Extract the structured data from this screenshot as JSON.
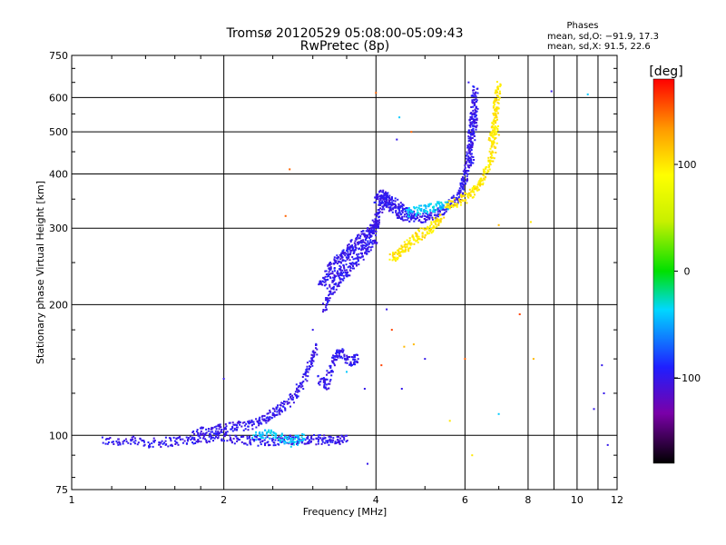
{
  "chart_data": {
    "type": "scatter",
    "title": "Tromsø 20120529 05:08:00-05:09:43",
    "subtitle": "RwPretec (8p)",
    "xlabel": "Frequency [MHz]",
    "ylabel": "Stationary phase Virtual Height [km]",
    "x_scale": "log",
    "y_scale": "log",
    "xlim": [
      1,
      12
    ],
    "ylim": [
      75,
      750
    ],
    "x_ticks": [
      1,
      2,
      4,
      6,
      8,
      10,
      12
    ],
    "x_ticks_all": [
      1,
      2,
      4,
      6,
      8,
      9,
      10,
      11,
      12
    ],
    "x_tick_labels": [
      "1",
      "2",
      "4",
      "6",
      "8",
      "10",
      "12"
    ],
    "y_ticks": [
      75,
      100,
      200,
      300,
      400,
      500,
      600,
      750
    ],
    "y_tick_labels": [
      "75",
      "100",
      "200",
      "300",
      "400",
      "500",
      "600",
      "750"
    ],
    "grid": true,
    "phases_box": {
      "title": "Phases",
      "line_o": "mean, sd,O: −91.9, 17.3",
      "line_x": "mean, sd,X:  91.5, 22.6"
    },
    "colorbar": {
      "label": "[deg]",
      "range": [
        -180,
        180
      ],
      "ticks": [
        100,
        0,
        -100
      ],
      "tick_labels": [
        "100",
        "0",
        "−100"
      ]
    },
    "series": [
      {
        "mode": "O",
        "phase": -100,
        "segments": [
          {
            "x": [
              1.15,
              1.3,
              1.45,
              1.6,
              1.75,
              1.9,
              2.1,
              2.3,
              2.5,
              2.7,
              2.9,
              3.1,
              3.3,
              3.5
            ],
            "y": [
              97,
              97,
              96,
              97,
              98,
              99,
              98,
              97,
              97,
              98,
              97,
              98,
              97,
              98
            ]
          },
          {
            "x": [
              1.75,
              1.9,
              2.0,
              2.15,
              2.3,
              2.45,
              2.55
            ],
            "y": [
              101,
              103,
              104,
              105,
              106,
              110,
              115
            ]
          },
          {
            "x": [
              2.55,
              2.7,
              2.85,
              2.95,
              3.05
            ],
            "y": [
              113,
              120,
              130,
              145,
              160
            ]
          },
          {
            "x": [
              3.1,
              3.2,
              3.3,
              3.4,
              3.55,
              3.7
            ],
            "y": [
              135,
              130,
              150,
              155,
              148,
              150
            ]
          },
          {
            "x": [
              3.1,
              3.2,
              3.3,
              3.45,
              3.6,
              3.8,
              3.95,
              4.05
            ],
            "y": [
              220,
              235,
              250,
              260,
              275,
              290,
              300,
              310
            ]
          },
          {
            "x": [
              3.15,
              3.25,
              3.4,
              3.55,
              3.7,
              3.85,
              4.0
            ],
            "y": [
              195,
              215,
              230,
              240,
              255,
              270,
              285
            ]
          },
          {
            "x": [
              3.25,
              3.4,
              3.6,
              3.8,
              3.95,
              4.05
            ],
            "y": [
              225,
              245,
              265,
              280,
              300,
              320
            ]
          },
          {
            "x": [
              4.05,
              4.15,
              4.3,
              4.5,
              4.8,
              5.1,
              5.4,
              5.7,
              5.9
            ],
            "y": [
              330,
              345,
              335,
              320,
              315,
              318,
              328,
              345,
              360
            ]
          },
          {
            "x": [
              4.0,
              4.1,
              4.2,
              4.35,
              4.55,
              4.8
            ],
            "y": [
              350,
              360,
              355,
              342,
              330,
              320
            ]
          },
          {
            "x": [
              5.9,
              6.0,
              6.1,
              6.15,
              6.2,
              6.25,
              6.3
            ],
            "y": [
              370,
              390,
              430,
              480,
              530,
              580,
              630
            ]
          },
          {
            "x": [
              6.15,
              6.2,
              6.25,
              6.3
            ],
            "y": [
              420,
              470,
              520,
              560
            ]
          }
        ]
      },
      {
        "mode": "X",
        "phase": 100,
        "segments": [
          {
            "x": [
              4.3,
              4.45,
              4.6,
              4.8,
              5.0,
              5.2,
              5.4
            ],
            "y": [
              255,
              262,
              272,
              285,
              295,
              305,
              318
            ]
          },
          {
            "x": [
              5.5,
              5.8,
              6.1,
              6.3,
              6.5,
              6.7,
              6.85,
              6.95
            ],
            "y": [
              335,
              345,
              355,
              370,
              390,
              420,
              460,
              520
            ]
          },
          {
            "x": [
              6.75,
              6.85,
              6.9,
              6.95,
              7.0
            ],
            "y": [
              480,
              520,
              560,
              600,
              640
            ]
          }
        ]
      },
      {
        "mode": "O-cyan",
        "phase": -40,
        "segments": [
          {
            "x": [
              2.3,
              2.5,
              2.7,
              2.9
            ],
            "y": [
              100,
              101,
              96,
              99
            ]
          },
          {
            "x": [
              4.6,
              4.9,
              5.2,
              5.5
            ],
            "y": [
              325,
              330,
              335,
              340
            ]
          }
        ]
      }
    ],
    "scatter_extra": [
      {
        "x": 2.7,
        "y": 410,
        "phase": 150
      },
      {
        "x": 2.65,
        "y": 320,
        "phase": 150
      },
      {
        "x": 4.0,
        "y": 615,
        "phase": 150
      },
      {
        "x": 4.45,
        "y": 540,
        "phase": -40
      },
      {
        "x": 4.4,
        "y": 480,
        "phase": -100
      },
      {
        "x": 4.7,
        "y": 500,
        "phase": 150
      },
      {
        "x": 8.9,
        "y": 620,
        "phase": -100
      },
      {
        "x": 10.5,
        "y": 610,
        "phase": -40
      },
      {
        "x": 7.7,
        "y": 190,
        "phase": 160
      },
      {
        "x": 8.1,
        "y": 310,
        "phase": 100
      },
      {
        "x": 4.2,
        "y": 195,
        "phase": -100
      },
      {
        "x": 4.3,
        "y": 175,
        "phase": 160
      },
      {
        "x": 4.55,
        "y": 160,
        "phase": 120
      },
      {
        "x": 4.75,
        "y": 162,
        "phase": 120
      },
      {
        "x": 5.0,
        "y": 150,
        "phase": -100
      },
      {
        "x": 4.5,
        "y": 128,
        "phase": -100
      },
      {
        "x": 3.8,
        "y": 128,
        "phase": -100
      },
      {
        "x": 4.1,
        "y": 145,
        "phase": 160
      },
      {
        "x": 5.6,
        "y": 108,
        "phase": 100
      },
      {
        "x": 6.0,
        "y": 150,
        "phase": 150
      },
      {
        "x": 7.0,
        "y": 112,
        "phase": -40
      },
      {
        "x": 8.2,
        "y": 150,
        "phase": 120
      },
      {
        "x": 6.2,
        "y": 90,
        "phase": 100
      },
      {
        "x": 3.85,
        "y": 86,
        "phase": -100
      },
      {
        "x": 11.2,
        "y": 145,
        "phase": -100
      },
      {
        "x": 11.3,
        "y": 125,
        "phase": -100
      },
      {
        "x": 10.8,
        "y": 115,
        "phase": -100
      },
      {
        "x": 11.5,
        "y": 95,
        "phase": -100
      },
      {
        "x": 2.0,
        "y": 135,
        "phase": -100
      },
      {
        "x": 7.0,
        "y": 305,
        "phase": 120
      },
      {
        "x": 6.1,
        "y": 650,
        "phase": -100
      },
      {
        "x": 3.0,
        "y": 175,
        "phase": -100
      },
      {
        "x": 3.5,
        "y": 140,
        "phase": -40
      }
    ]
  }
}
